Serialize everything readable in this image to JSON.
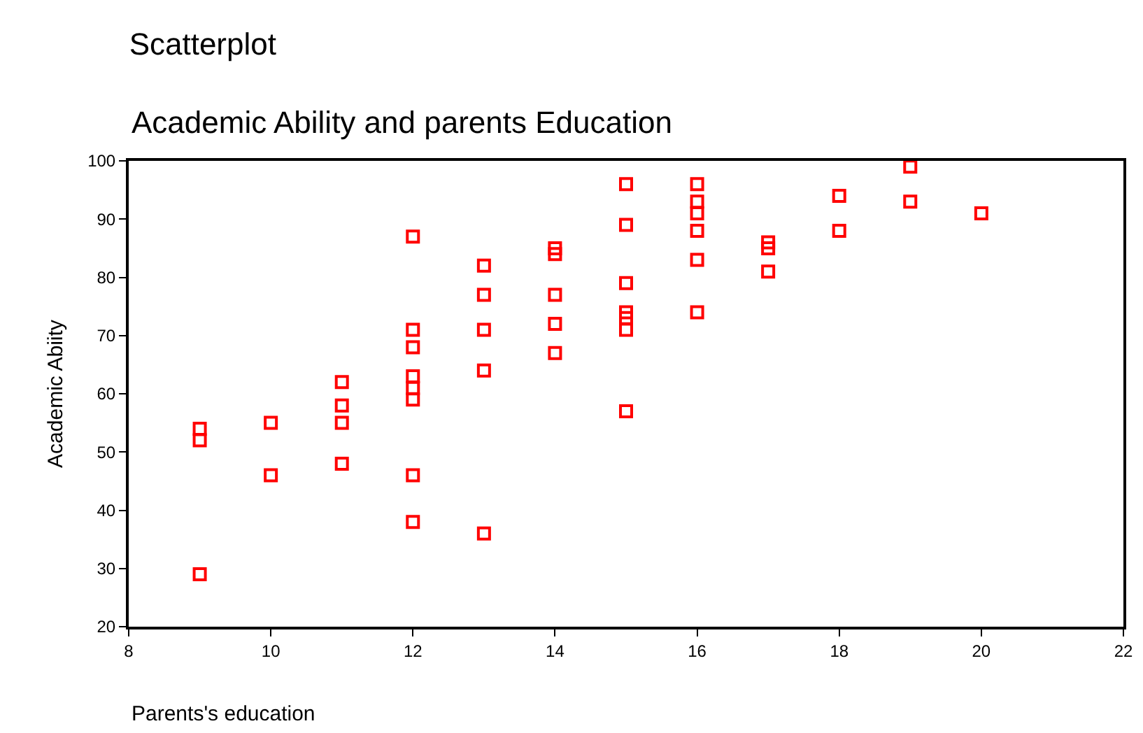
{
  "chart_data": {
    "type": "scatter",
    "title": "Scatterplot",
    "subtitle": "Academic Ability and parents Education",
    "xlabel": "Parents's education",
    "ylabel": "Academic Abiity",
    "x": [
      9,
      9,
      9,
      10,
      10,
      11,
      11,
      11,
      11,
      12,
      12,
      12,
      12,
      12,
      12,
      12,
      12,
      13,
      13,
      13,
      13,
      13,
      14,
      14,
      14,
      14,
      14,
      15,
      15,
      15,
      15,
      15,
      15,
      15,
      16,
      16,
      16,
      16,
      16,
      16,
      17,
      17,
      17,
      18,
      18,
      19,
      19,
      20
    ],
    "values": [
      54,
      52,
      29,
      55,
      46,
      62,
      58,
      55,
      48,
      87,
      71,
      68,
      63,
      61,
      59,
      46,
      38,
      82,
      77,
      71,
      64,
      36,
      85,
      84,
      77,
      72,
      67,
      96,
      89,
      79,
      74,
      73,
      71,
      57,
      96,
      93,
      91,
      88,
      83,
      74,
      86,
      85,
      81,
      94,
      88,
      99,
      93,
      91
    ],
    "color": "#ff0000",
    "marker": "square",
    "xlim": [
      8,
      22
    ],
    "xticks": [
      8,
      10,
      12,
      14,
      16,
      18,
      20,
      22
    ],
    "ylim": [
      20,
      100
    ],
    "yticks": [
      20,
      30,
      40,
      50,
      60,
      70,
      80,
      90,
      100
    ]
  }
}
